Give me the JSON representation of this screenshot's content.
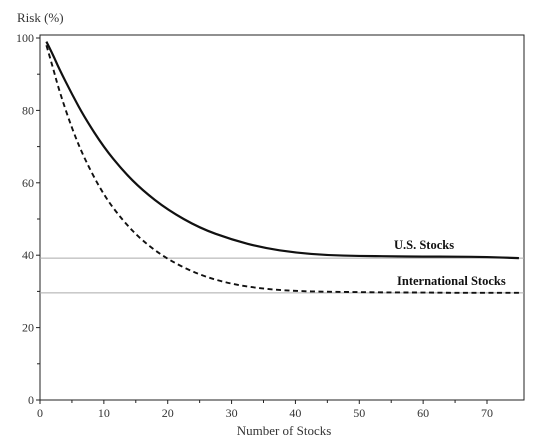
{
  "chart_data": {
    "type": "line",
    "title": "",
    "ylabel": "Risk (%)",
    "xlabel": "Number of Stocks",
    "xlim": [
      0,
      75
    ],
    "ylim": [
      0,
      100
    ],
    "xticks": [
      0,
      10,
      20,
      30,
      40,
      50,
      60,
      70
    ],
    "yticks": [
      0,
      20,
      40,
      60,
      80,
      100
    ],
    "grid": false,
    "legend": "none",
    "series": [
      {
        "name": "U.S. Stocks",
        "line_style": "solid",
        "color": "#111111",
        "x": [
          1,
          2,
          3,
          5,
          7,
          10,
          13,
          16,
          20,
          25,
          30,
          35,
          40,
          45,
          50,
          55,
          60,
          65,
          70,
          75
        ],
        "y": [
          99.0,
          95.5,
          91.5,
          84.5,
          78.0,
          69.8,
          63.3,
          58.0,
          52.5,
          47.5,
          44.3,
          42.0,
          40.7,
          40.0,
          39.8,
          39.7,
          39.6,
          39.6,
          39.5,
          39.2
        ]
      },
      {
        "name": "International Stocks",
        "line_style": "dashed",
        "color": "#111111",
        "x": [
          1,
          2,
          3,
          5,
          7,
          10,
          13,
          16,
          20,
          25,
          30,
          35,
          40,
          45,
          50,
          55,
          60,
          65,
          70,
          75
        ],
        "y": [
          98.0,
          92.0,
          85.5,
          75.0,
          66.5,
          56.5,
          49.5,
          44.0,
          38.8,
          34.5,
          32.0,
          30.7,
          30.1,
          29.9,
          29.8,
          29.7,
          29.7,
          29.6,
          29.6,
          29.6
        ]
      }
    ],
    "reference_lines": [
      {
        "orientation": "horizontal",
        "y": 39.2,
        "color": "#aaaaaa"
      },
      {
        "orientation": "horizontal",
        "y": 29.6,
        "color": "#aaaaaa"
      }
    ],
    "annotations": [
      {
        "text": "U.S. Stocks",
        "series": "U.S. Stocks"
      },
      {
        "text": "International Stocks",
        "series": "International Stocks"
      }
    ]
  }
}
